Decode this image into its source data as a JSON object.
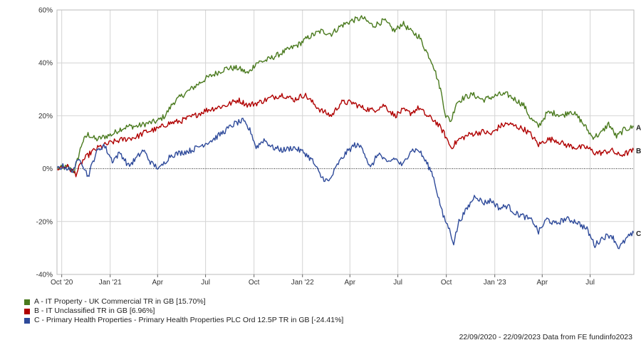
{
  "chart_data": {
    "type": "line",
    "title": "",
    "xlabel": "",
    "ylabel": "",
    "ylim": [
      -40,
      60
    ],
    "yticks": [
      "60%",
      "40%",
      "20%",
      "0%",
      "-20%",
      "-40%"
    ],
    "ytick_values": [
      60,
      40,
      20,
      0,
      -20,
      -40
    ],
    "xticks": [
      "Oct '20",
      "Jan '21",
      "Apr",
      "Jul",
      "Oct",
      "Jan '22",
      "Apr",
      "Jul",
      "Oct",
      "Jan '23",
      "Apr",
      "Jul"
    ],
    "x_range": [
      "2020-09-22",
      "2023-09-22"
    ],
    "grid": true,
    "series": [
      {
        "name": "A - IT Property - UK Commercial TR in GB [15.70%]",
        "end_label": "A",
        "color": "#4a7a1e",
        "points": [
          [
            "2020-09-22",
            0
          ],
          [
            "2020-10-10",
            0.5
          ],
          [
            "2020-10-25",
            -1
          ],
          [
            "2020-11-09",
            10
          ],
          [
            "2020-11-20",
            13
          ],
          [
            "2020-12-05",
            11
          ],
          [
            "2020-12-20",
            12
          ],
          [
            "2021-01-05",
            13
          ],
          [
            "2021-01-20",
            15
          ],
          [
            "2021-02-05",
            16
          ],
          [
            "2021-02-20",
            16
          ],
          [
            "2021-03-10",
            17
          ],
          [
            "2021-04-01",
            18
          ],
          [
            "2021-04-15",
            20
          ],
          [
            "2021-05-01",
            25
          ],
          [
            "2021-05-20",
            28
          ],
          [
            "2021-06-10",
            31
          ],
          [
            "2021-07-01",
            34
          ],
          [
            "2021-07-20",
            36
          ],
          [
            "2021-08-10",
            38
          ],
          [
            "2021-09-01",
            38
          ],
          [
            "2021-09-20",
            36
          ],
          [
            "2021-10-05",
            40
          ],
          [
            "2021-10-25",
            41
          ],
          [
            "2021-11-15",
            43
          ],
          [
            "2021-12-05",
            45
          ],
          [
            "2021-12-25",
            47
          ],
          [
            "2022-01-15",
            50
          ],
          [
            "2022-02-05",
            52
          ],
          [
            "2022-02-25",
            51
          ],
          [
            "2022-03-15",
            54
          ],
          [
            "2022-04-05",
            56
          ],
          [
            "2022-04-25",
            57
          ],
          [
            "2022-05-15",
            54
          ],
          [
            "2022-06-05",
            56
          ],
          [
            "2022-06-25",
            52
          ],
          [
            "2022-07-10",
            55
          ],
          [
            "2022-07-25",
            52
          ],
          [
            "2022-08-10",
            50
          ],
          [
            "2022-08-25",
            44
          ],
          [
            "2022-09-05",
            40
          ],
          [
            "2022-09-20",
            30
          ],
          [
            "2022-09-30",
            20
          ],
          [
            "2022-10-10",
            18
          ],
          [
            "2022-10-20",
            25
          ],
          [
            "2022-11-05",
            27
          ],
          [
            "2022-11-20",
            28
          ],
          [
            "2022-12-10",
            26
          ],
          [
            "2022-12-25",
            27
          ],
          [
            "2023-01-10",
            28
          ],
          [
            "2023-01-25",
            28
          ],
          [
            "2023-02-10",
            26
          ],
          [
            "2023-02-25",
            24
          ],
          [
            "2023-03-10",
            19
          ],
          [
            "2023-03-25",
            16
          ],
          [
            "2023-04-10",
            21
          ],
          [
            "2023-04-25",
            21
          ],
          [
            "2023-05-10",
            20
          ],
          [
            "2023-05-25",
            22
          ],
          [
            "2023-06-10",
            19
          ],
          [
            "2023-06-25",
            15
          ],
          [
            "2023-07-05",
            12
          ],
          [
            "2023-07-20",
            13
          ],
          [
            "2023-08-05",
            17
          ],
          [
            "2023-08-20",
            12
          ],
          [
            "2023-09-05",
            15
          ],
          [
            "2023-09-22",
            15.7
          ]
        ]
      },
      {
        "name": "B - IT Unclassified TR in GB [6.96%]",
        "end_label": "B",
        "color": "#b00000",
        "points": [
          [
            "2020-09-22",
            0
          ],
          [
            "2020-10-10",
            1
          ],
          [
            "2020-10-28",
            -2
          ],
          [
            "2020-11-10",
            3
          ],
          [
            "2020-11-25",
            6
          ],
          [
            "2020-12-10",
            8
          ],
          [
            "2021-01-05",
            10
          ],
          [
            "2021-01-25",
            11
          ],
          [
            "2021-02-20",
            12
          ],
          [
            "2021-03-10",
            14
          ],
          [
            "2021-04-01",
            15
          ],
          [
            "2021-04-20",
            17
          ],
          [
            "2021-05-15",
            18
          ],
          [
            "2021-06-10",
            20
          ],
          [
            "2021-07-01",
            22
          ],
          [
            "2021-07-20",
            23
          ],
          [
            "2021-08-10",
            24
          ],
          [
            "2021-09-01",
            26
          ],
          [
            "2021-09-20",
            24
          ],
          [
            "2021-10-10",
            25
          ],
          [
            "2021-11-05",
            27
          ],
          [
            "2021-11-25",
            28
          ],
          [
            "2021-12-15",
            26
          ],
          [
            "2022-01-05",
            28
          ],
          [
            "2022-01-20",
            25
          ],
          [
            "2022-02-05",
            22
          ],
          [
            "2022-02-25",
            20
          ],
          [
            "2022-03-15",
            25
          ],
          [
            "2022-04-05",
            25
          ],
          [
            "2022-04-25",
            23
          ],
          [
            "2022-05-15",
            22
          ],
          [
            "2022-06-05",
            24
          ],
          [
            "2022-06-25",
            20
          ],
          [
            "2022-07-10",
            22
          ],
          [
            "2022-07-25",
            21
          ],
          [
            "2022-08-10",
            23
          ],
          [
            "2022-08-25",
            20
          ],
          [
            "2022-09-10",
            18
          ],
          [
            "2022-09-25",
            14
          ],
          [
            "2022-10-10",
            8
          ],
          [
            "2022-10-25",
            11
          ],
          [
            "2022-11-15",
            13
          ],
          [
            "2022-12-10",
            14
          ],
          [
            "2022-12-25",
            13
          ],
          [
            "2023-01-10",
            16
          ],
          [
            "2023-01-25",
            17
          ],
          [
            "2023-02-10",
            16
          ],
          [
            "2023-02-25",
            15
          ],
          [
            "2023-03-10",
            13
          ],
          [
            "2023-03-25",
            9
          ],
          [
            "2023-04-10",
            11
          ],
          [
            "2023-04-25",
            11
          ],
          [
            "2023-05-15",
            9
          ],
          [
            "2023-06-05",
            8
          ],
          [
            "2023-06-25",
            8
          ],
          [
            "2023-07-10",
            6
          ],
          [
            "2023-07-25",
            6
          ],
          [
            "2023-08-10",
            7
          ],
          [
            "2023-08-25",
            5
          ],
          [
            "2023-09-10",
            6
          ],
          [
            "2023-09-22",
            6.96
          ]
        ]
      },
      {
        "name": "C - Primary Health Properties - Primary Health Properties PLC Ord 12.5P TR in GB [-24.41%]",
        "end_label": "C",
        "color": "#2e4a9a",
        "points": [
          [
            "2020-09-22",
            0
          ],
          [
            "2020-10-05",
            1
          ],
          [
            "2020-10-20",
            -1
          ],
          [
            "2020-11-05",
            4
          ],
          [
            "2020-11-20",
            -3
          ],
          [
            "2020-12-05",
            6
          ],
          [
            "2020-12-20",
            9
          ],
          [
            "2021-01-05",
            3
          ],
          [
            "2021-01-20",
            6
          ],
          [
            "2021-02-05",
            1
          ],
          [
            "2021-02-20",
            4
          ],
          [
            "2021-03-05",
            7
          ],
          [
            "2021-03-20",
            2
          ],
          [
            "2021-04-05",
            0
          ],
          [
            "2021-04-25",
            5
          ],
          [
            "2021-05-15",
            6
          ],
          [
            "2021-06-05",
            7
          ],
          [
            "2021-06-25",
            9
          ],
          [
            "2021-07-15",
            11
          ],
          [
            "2021-08-05",
            14
          ],
          [
            "2021-08-25",
            17
          ],
          [
            "2021-09-10",
            18
          ],
          [
            "2021-09-25",
            14
          ],
          [
            "2021-10-05",
            8
          ],
          [
            "2021-10-20",
            11
          ],
          [
            "2021-11-05",
            8
          ],
          [
            "2021-11-25",
            7
          ],
          [
            "2021-12-15",
            8
          ],
          [
            "2022-01-05",
            6
          ],
          [
            "2022-01-20",
            3
          ],
          [
            "2022-02-05",
            -3
          ],
          [
            "2022-02-20",
            -5
          ],
          [
            "2022-03-10",
            2
          ],
          [
            "2022-03-25",
            6
          ],
          [
            "2022-04-10",
            9
          ],
          [
            "2022-04-25",
            8
          ],
          [
            "2022-05-10",
            0
          ],
          [
            "2022-05-25",
            6
          ],
          [
            "2022-06-10",
            2
          ],
          [
            "2022-06-25",
            4
          ],
          [
            "2022-07-10",
            1
          ],
          [
            "2022-07-25",
            7
          ],
          [
            "2022-08-10",
            7
          ],
          [
            "2022-08-25",
            2
          ],
          [
            "2022-09-05",
            -2
          ],
          [
            "2022-09-15",
            -10
          ],
          [
            "2022-09-25",
            -18
          ],
          [
            "2022-10-05",
            -22
          ],
          [
            "2022-10-15",
            -28
          ],
          [
            "2022-10-25",
            -20
          ],
          [
            "2022-11-10",
            -15
          ],
          [
            "2022-11-25",
            -10
          ],
          [
            "2022-12-10",
            -13
          ],
          [
            "2022-12-25",
            -12
          ],
          [
            "2023-01-10",
            -15
          ],
          [
            "2023-01-25",
            -14
          ],
          [
            "2023-02-10",
            -17
          ],
          [
            "2023-02-25",
            -18
          ],
          [
            "2023-03-15",
            -20
          ],
          [
            "2023-03-25",
            -24
          ],
          [
            "2023-04-10",
            -19
          ],
          [
            "2023-04-25",
            -21
          ],
          [
            "2023-05-15",
            -19
          ],
          [
            "2023-06-05",
            -20
          ],
          [
            "2023-06-25",
            -23
          ],
          [
            "2023-07-10",
            -29
          ],
          [
            "2023-07-25",
            -26
          ],
          [
            "2023-08-10",
            -25
          ],
          [
            "2023-08-25",
            -30
          ],
          [
            "2023-09-10",
            -26
          ],
          [
            "2023-09-22",
            -24.41
          ]
        ]
      }
    ]
  },
  "footer": "22/09/2020 - 22/09/2023 Data from FE fundinfo2023"
}
